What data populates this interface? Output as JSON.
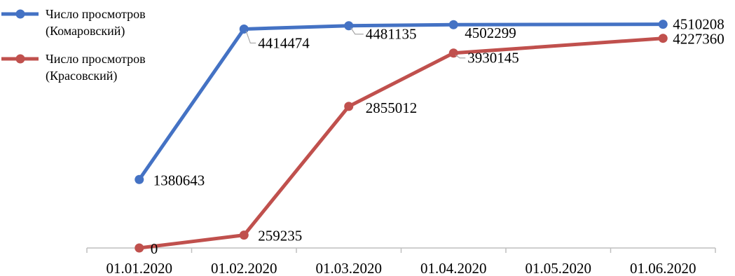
{
  "chart_data": {
    "type": "line",
    "title": "",
    "xlabel": "",
    "ylabel": "",
    "categories": [
      "01.01.2020",
      "01.02.2020",
      "01.03.2020",
      "01.04.2020",
      "01.05.2020",
      "01.06.2020"
    ],
    "ylim": [
      0,
      5000000
    ],
    "grid": false,
    "legend_position": "top-left",
    "series": [
      {
        "name": "Число просмотров (Комаровский)",
        "name_lines": [
          "Число просмотров",
          "(Комаровский)"
        ],
        "color": "#4472C4",
        "points": [
          {
            "x": "01.01.2020",
            "y": 1380643,
            "label": "1380643"
          },
          {
            "x": "01.02.2020",
            "y": 4414474,
            "label": "4414474"
          },
          {
            "x": "01.03.2020",
            "y": 4481135,
            "label": "4481135"
          },
          {
            "x": "01.04.2020",
            "y": 4502299,
            "label": "4502299"
          },
          {
            "x": "01.06.2020",
            "y": 4510208,
            "label": "4510208"
          }
        ]
      },
      {
        "name": "Число просмотров (Красовский)",
        "name_lines": [
          "Число просмотров",
          "(Красовский)"
        ],
        "color": "#C0504D",
        "points": [
          {
            "x": "01.01.2020",
            "y": 0,
            "label": "0"
          },
          {
            "x": "01.02.2020",
            "y": 259235,
            "label": "259235"
          },
          {
            "x": "01.03.2020",
            "y": 2855012,
            "label": "2855012"
          },
          {
            "x": "01.04.2020",
            "y": 3930145,
            "label": "3930145"
          },
          {
            "x": "01.06.2020",
            "y": 4227360,
            "label": "4227360"
          }
        ]
      }
    ]
  }
}
